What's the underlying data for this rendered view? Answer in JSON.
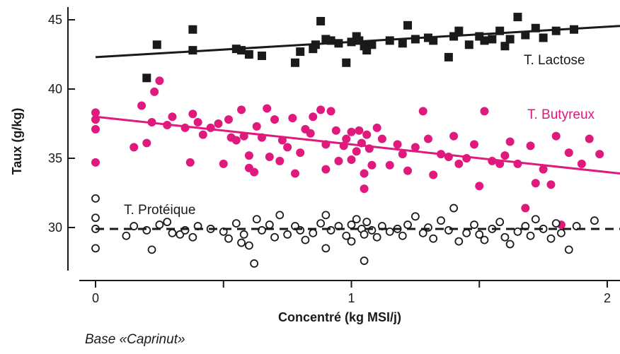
{
  "chart_data": {
    "type": "scatter",
    "xlabel": "Concentré (kg MSI/j)",
    "ylabel": "Taux (g/kg)",
    "xlim": [
      0,
      2
    ],
    "ylim": [
      26.2,
      46.5
    ],
    "x_ticks": [
      0,
      1,
      2
    ],
    "x_minor_ticks": [
      0.5,
      1.5
    ],
    "y_ticks": [
      30,
      35,
      40,
      45
    ],
    "x_tick_labels": [
      "0",
      "1",
      "2"
    ],
    "y_tick_labels": [
      "30",
      "35",
      "40",
      "45"
    ],
    "grid": false,
    "footnote": "Base «Caprinut»",
    "series": [
      {
        "name": "T. Lactose",
        "color": "#1a1a1a",
        "marker": "square",
        "trend": {
          "x": [
            0,
            2
          ],
          "y": [
            42.3,
            44.5
          ],
          "style": "solid"
        },
        "points": [
          [
            0.2,
            40.8
          ],
          [
            0.24,
            43.2
          ],
          [
            0.38,
            42.8
          ],
          [
            0.38,
            44.3
          ],
          [
            0.55,
            42.9
          ],
          [
            0.57,
            42.8
          ],
          [
            0.6,
            42.5
          ],
          [
            0.65,
            42.4
          ],
          [
            0.78,
            41.9
          ],
          [
            0.8,
            42.7
          ],
          [
            0.85,
            42.9
          ],
          [
            0.86,
            43.2
          ],
          [
            0.88,
            44.9
          ],
          [
            0.9,
            43.6
          ],
          [
            0.92,
            43.5
          ],
          [
            0.95,
            43.3
          ],
          [
            0.98,
            41.9
          ],
          [
            1.0,
            43.4
          ],
          [
            1.02,
            43.8
          ],
          [
            1.03,
            43.5
          ],
          [
            1.05,
            43.1
          ],
          [
            1.06,
            42.8
          ],
          [
            1.08,
            43.2
          ],
          [
            1.15,
            43.5
          ],
          [
            1.2,
            43.3
          ],
          [
            1.22,
            44.6
          ],
          [
            1.25,
            43.6
          ],
          [
            1.3,
            43.7
          ],
          [
            1.32,
            43.5
          ],
          [
            1.38,
            42.3
          ],
          [
            1.4,
            43.8
          ],
          [
            1.42,
            44.2
          ],
          [
            1.46,
            43.2
          ],
          [
            1.5,
            43.8
          ],
          [
            1.52,
            43.5
          ],
          [
            1.55,
            43.6
          ],
          [
            1.58,
            44.2
          ],
          [
            1.6,
            43.1
          ],
          [
            1.62,
            43.6
          ],
          [
            1.65,
            45.2
          ],
          [
            1.68,
            43.9
          ],
          [
            1.72,
            44.4
          ],
          [
            1.75,
            43.7
          ],
          [
            1.8,
            44.2
          ],
          [
            1.87,
            44.3
          ]
        ]
      },
      {
        "name": "T. Butyreux",
        "color": "#e0197d",
        "marker": "circle",
        "trend": {
          "x": [
            0,
            2
          ],
          "y": [
            38.0,
            34.0
          ],
          "style": "solid"
        },
        "points": [
          [
            0.0,
            38.3
          ],
          [
            0.0,
            37.8
          ],
          [
            0.0,
            37.1
          ],
          [
            0.0,
            34.7
          ],
          [
            0.15,
            35.8
          ],
          [
            0.18,
            38.8
          ],
          [
            0.2,
            36.1
          ],
          [
            0.22,
            37.6
          ],
          [
            0.23,
            39.8
          ],
          [
            0.25,
            40.6
          ],
          [
            0.28,
            37.4
          ],
          [
            0.3,
            38.0
          ],
          [
            0.35,
            37.2
          ],
          [
            0.37,
            34.7
          ],
          [
            0.38,
            38.2
          ],
          [
            0.4,
            37.6
          ],
          [
            0.42,
            36.7
          ],
          [
            0.45,
            37.2
          ],
          [
            0.48,
            37.5
          ],
          [
            0.5,
            34.6
          ],
          [
            0.52,
            37.8
          ],
          [
            0.53,
            36.5
          ],
          [
            0.55,
            36.3
          ],
          [
            0.57,
            38.5
          ],
          [
            0.58,
            36.6
          ],
          [
            0.6,
            35.2
          ],
          [
            0.6,
            34.3
          ],
          [
            0.62,
            34.0
          ],
          [
            0.63,
            37.3
          ],
          [
            0.65,
            36.5
          ],
          [
            0.67,
            38.6
          ],
          [
            0.68,
            35.1
          ],
          [
            0.7,
            37.8
          ],
          [
            0.72,
            34.8
          ],
          [
            0.73,
            36.3
          ],
          [
            0.75,
            35.8
          ],
          [
            0.77,
            37.9
          ],
          [
            0.78,
            33.9
          ],
          [
            0.8,
            35.4
          ],
          [
            0.82,
            37.1
          ],
          [
            0.84,
            36.8
          ],
          [
            0.85,
            38.0
          ],
          [
            0.88,
            38.5
          ],
          [
            0.9,
            36.0
          ],
          [
            0.9,
            34.2
          ],
          [
            0.92,
            38.4
          ],
          [
            0.94,
            37.0
          ],
          [
            0.95,
            34.8
          ],
          [
            0.97,
            35.9
          ],
          [
            0.98,
            36.4
          ],
          [
            1.0,
            36.9
          ],
          [
            1.0,
            34.9
          ],
          [
            1.02,
            35.5
          ],
          [
            1.03,
            37.0
          ],
          [
            1.04,
            36.1
          ],
          [
            1.05,
            33.9
          ],
          [
            1.05,
            32.8
          ],
          [
            1.06,
            36.7
          ],
          [
            1.07,
            35.7
          ],
          [
            1.08,
            34.5
          ],
          [
            1.1,
            37.2
          ],
          [
            1.12,
            36.4
          ],
          [
            1.15,
            34.5
          ],
          [
            1.18,
            36.0
          ],
          [
            1.2,
            35.3
          ],
          [
            1.22,
            34.1
          ],
          [
            1.25,
            35.8
          ],
          [
            1.28,
            38.4
          ],
          [
            1.3,
            36.4
          ],
          [
            1.32,
            33.8
          ],
          [
            1.35,
            35.3
          ],
          [
            1.38,
            35.1
          ],
          [
            1.4,
            36.6
          ],
          [
            1.42,
            34.6
          ],
          [
            1.45,
            35.0
          ],
          [
            1.48,
            36.0
          ],
          [
            1.5,
            33.0
          ],
          [
            1.52,
            38.4
          ],
          [
            1.55,
            34.8
          ],
          [
            1.58,
            34.6
          ],
          [
            1.6,
            35.2
          ],
          [
            1.62,
            36.2
          ],
          [
            1.65,
            34.6
          ],
          [
            1.68,
            31.4
          ],
          [
            1.7,
            35.9
          ],
          [
            1.72,
            33.2
          ],
          [
            1.75,
            34.2
          ],
          [
            1.78,
            33.1
          ],
          [
            1.8,
            36.6
          ],
          [
            1.82,
            30.2
          ],
          [
            1.85,
            35.4
          ],
          [
            1.9,
            34.6
          ],
          [
            1.97,
            35.3
          ],
          [
            1.93,
            36.4
          ]
        ]
      },
      {
        "name": "T. Protéique",
        "color": "#1a1a1a",
        "marker": "open-circle",
        "trend": {
          "x": [
            0,
            2
          ],
          "y": [
            29.9,
            29.9
          ],
          "style": "dashed"
        },
        "points": [
          [
            0.0,
            32.1
          ],
          [
            0.0,
            30.7
          ],
          [
            0.0,
            29.9
          ],
          [
            0.0,
            28.5
          ],
          [
            0.12,
            29.4
          ],
          [
            0.15,
            30.1
          ],
          [
            0.2,
            29.8
          ],
          [
            0.22,
            28.4
          ],
          [
            0.25,
            30.2
          ],
          [
            0.28,
            30.4
          ],
          [
            0.3,
            29.6
          ],
          [
            0.33,
            29.5
          ],
          [
            0.35,
            29.8
          ],
          [
            0.38,
            29.3
          ],
          [
            0.4,
            30.1
          ],
          [
            0.45,
            29.9
          ],
          [
            0.5,
            29.7
          ],
          [
            0.52,
            29.2
          ],
          [
            0.55,
            30.3
          ],
          [
            0.57,
            28.9
          ],
          [
            0.58,
            29.5
          ],
          [
            0.6,
            28.7
          ],
          [
            0.62,
            27.4
          ],
          [
            0.63,
            30.6
          ],
          [
            0.65,
            29.8
          ],
          [
            0.68,
            30.2
          ],
          [
            0.7,
            29.3
          ],
          [
            0.72,
            30.9
          ],
          [
            0.75,
            29.5
          ],
          [
            0.78,
            30.1
          ],
          [
            0.8,
            29.8
          ],
          [
            0.82,
            29.1
          ],
          [
            0.85,
            29.6
          ],
          [
            0.88,
            30.3
          ],
          [
            0.9,
            30.9
          ],
          [
            0.9,
            28.5
          ],
          [
            0.92,
            29.8
          ],
          [
            0.95,
            30.1
          ],
          [
            0.98,
            29.4
          ],
          [
            1.0,
            30.2
          ],
          [
            1.0,
            29.0
          ],
          [
            1.02,
            30.6
          ],
          [
            1.04,
            29.9
          ],
          [
            1.05,
            27.6
          ],
          [
            1.05,
            29.5
          ],
          [
            1.06,
            30.4
          ],
          [
            1.08,
            29.8
          ],
          [
            1.1,
            29.3
          ],
          [
            1.12,
            30.1
          ],
          [
            1.15,
            29.7
          ],
          [
            1.18,
            29.9
          ],
          [
            1.2,
            29.4
          ],
          [
            1.22,
            30.2
          ],
          [
            1.25,
            30.8
          ],
          [
            1.28,
            29.6
          ],
          [
            1.3,
            30.0
          ],
          [
            1.32,
            29.2
          ],
          [
            1.35,
            30.5
          ],
          [
            1.38,
            29.8
          ],
          [
            1.4,
            31.4
          ],
          [
            1.42,
            29.0
          ],
          [
            1.45,
            29.6
          ],
          [
            1.48,
            30.2
          ],
          [
            1.5,
            29.5
          ],
          [
            1.52,
            29.1
          ],
          [
            1.55,
            29.9
          ],
          [
            1.58,
            30.4
          ],
          [
            1.6,
            29.3
          ],
          [
            1.62,
            28.8
          ],
          [
            1.65,
            29.7
          ],
          [
            1.68,
            30.1
          ],
          [
            1.7,
            29.4
          ],
          [
            1.72,
            30.6
          ],
          [
            1.75,
            29.9
          ],
          [
            1.78,
            29.2
          ],
          [
            1.8,
            30.3
          ],
          [
            1.82,
            29.6
          ],
          [
            1.85,
            28.4
          ],
          [
            1.88,
            30.1
          ],
          [
            1.95,
            30.5
          ]
        ]
      }
    ]
  }
}
